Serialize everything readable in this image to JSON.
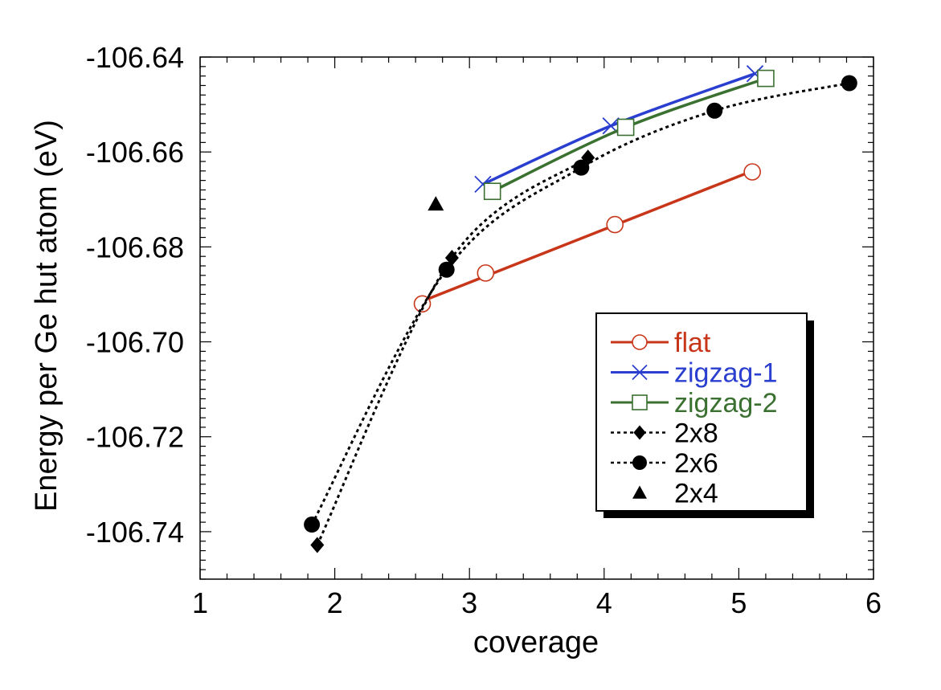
{
  "chart_data": {
    "type": "line",
    "title": "",
    "xlabel": "coverage",
    "ylabel": "Energy per Ge hut atom (eV)",
    "xlim": [
      1,
      6
    ],
    "ylim": [
      -106.75,
      -106.64
    ],
    "x_ticks": [
      1,
      2,
      3,
      4,
      5,
      6
    ],
    "x_tick_labels": [
      "1",
      "2",
      "3",
      "4",
      "5",
      "6"
    ],
    "y_ticks": [
      -106.64,
      -106.66,
      -106.68,
      -106.7,
      -106.72,
      -106.74
    ],
    "y_tick_labels": [
      "-106.64",
      "-106.66",
      "-106.68",
      "-106.70",
      "-106.72",
      "-106.74"
    ],
    "grid": false,
    "legend_position": "right",
    "series": [
      {
        "name": "flat",
        "color": "#c8361a",
        "marker": "open-circle",
        "line": "solid",
        "fit": "linear",
        "x": [
          2.65,
          3.12,
          4.08,
          5.1
        ],
        "y": [
          -106.692,
          -106.6855,
          -106.6753,
          -106.6642
        ]
      },
      {
        "name": "zigzag-1",
        "color": "#2a3fcf",
        "marker": "x",
        "line": "solid",
        "fit": "smooth",
        "x": [
          3.1,
          4.05,
          5.12
        ],
        "y": [
          -106.6668,
          -106.6545,
          -106.6435
        ]
      },
      {
        "name": "zigzag-2",
        "color": "#3a7030",
        "marker": "open-square",
        "line": "solid",
        "fit": "smooth",
        "x": [
          3.17,
          4.16,
          5.2
        ],
        "y": [
          -106.6683,
          -106.6548,
          -106.6445
        ]
      },
      {
        "name": "2x8",
        "color": "#000000",
        "marker": "diamond",
        "line": "dotted",
        "fit": "smooth",
        "x": [
          1.87,
          2.87,
          3.88
        ],
        "y": [
          -106.7428,
          -106.6823,
          -106.6612
        ]
      },
      {
        "name": "2x6",
        "color": "#000000",
        "marker": "filled-circle",
        "line": "dotted",
        "fit": "smooth",
        "x": [
          1.83,
          2.83,
          3.83,
          4.82,
          5.82
        ],
        "y": [
          -106.7385,
          -106.6848,
          -106.6633,
          -106.6513,
          -106.6455
        ]
      },
      {
        "name": "2x4",
        "color": "#000000",
        "marker": "triangle",
        "line": "none",
        "fit": "none",
        "x": [
          2.75
        ],
        "y": [
          -106.671
        ]
      }
    ]
  }
}
